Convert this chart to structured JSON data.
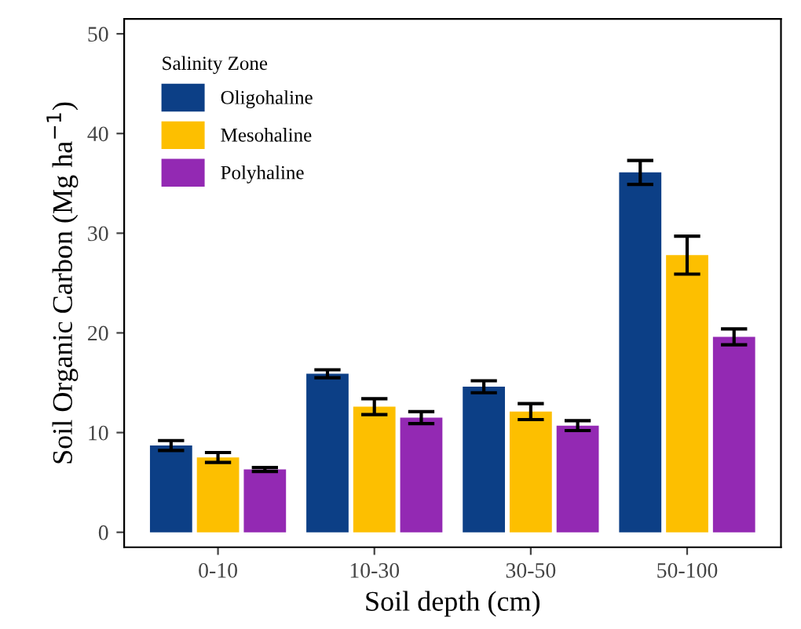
{
  "chart_data": {
    "type": "bar",
    "xlabel": "Soil depth (cm)",
    "ylabel": "Soil Organic Carbon (Mg ha$^{−1}$)",
    "legend_title": "Salinity Zone",
    "categories": [
      "0-10",
      "10-30",
      "30-50",
      "50-100"
    ],
    "series": [
      {
        "name": "Oligohaline",
        "color": "#0c3f86",
        "values": [
          8.7,
          15.9,
          14.6,
          36.1
        ],
        "errors": [
          0.5,
          0.4,
          0.6,
          1.2
        ]
      },
      {
        "name": "Mesohaline",
        "color": "#fdbf00",
        "values": [
          7.5,
          12.6,
          12.1,
          27.8
        ],
        "errors": [
          0.5,
          0.8,
          0.8,
          1.9
        ]
      },
      {
        "name": "Polyhaline",
        "color": "#9329b3",
        "values": [
          6.3,
          11.5,
          10.7,
          19.6
        ],
        "errors": [
          0.2,
          0.6,
          0.5,
          0.8
        ]
      }
    ],
    "ylim": [
      -1.5,
      51.5
    ],
    "yticks": [
      0,
      10,
      20,
      30,
      40,
      50
    ],
    "grid": false,
    "legend": "top left"
  }
}
